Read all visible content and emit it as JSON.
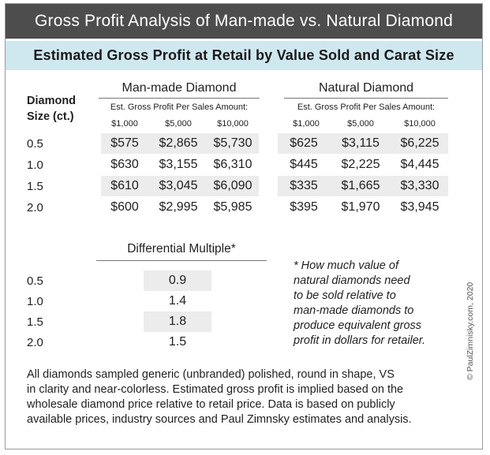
{
  "title": "Gross Profit Analysis of Man-made vs. Natural Diamond",
  "subtitle": "Estimated Gross Profit at Retail by Value Sold and Carat Size",
  "size_header_line1": "Diamond",
  "size_header_line2": "Size (ct.)",
  "groups": [
    {
      "name": "Man-made Diamond",
      "note": "Est. Gross Profit Per Sales Amount:",
      "amounts": [
        "$1,000",
        "$5,000",
        "$10,000"
      ],
      "rows": [
        [
          "$575",
          "$2,865",
          "$5,730"
        ],
        [
          "$630",
          "$3,155",
          "$6,310"
        ],
        [
          "$610",
          "$3,045",
          "$6,090"
        ],
        [
          "$600",
          "$2,995",
          "$5,985"
        ]
      ]
    },
    {
      "name": "Natural Diamond",
      "note": "Est. Gross Profit Per Sales Amount:",
      "amounts": [
        "$1,000",
        "$5,000",
        "$10,000"
      ],
      "rows": [
        [
          "$625",
          "$3,115",
          "$6,225"
        ],
        [
          "$445",
          "$2,225",
          "$4,445"
        ],
        [
          "$335",
          "$1,665",
          "$3,330"
        ],
        [
          "$395",
          "$1,970",
          "$3,945"
        ]
      ]
    }
  ],
  "sizes": [
    "0.5",
    "1.0",
    "1.5",
    "2.0"
  ],
  "multiple": {
    "title": "Differential Multiple*",
    "sizes": [
      "0.5",
      "1.0",
      "1.5",
      "2.0"
    ],
    "values": [
      "0.9",
      "1.4",
      "1.8",
      "1.5"
    ]
  },
  "footnote_lines": [
    "* How much value of",
    "natural diamonds need",
    "to be sold relative to",
    "man-made diamonds to",
    "produce equivalent gross",
    "profit in dollars for retailer."
  ],
  "footer_lines": [
    "All diamonds sampled generic (unbranded) polished, round in shape, VS",
    "in clarity and near-colorless. Estimated gross profit is implied based on the",
    "wholesale diamond price relative to retail price. Data is based on publicly",
    "available prices, industry sources and Paul Zimnsky estimates and analysis."
  ],
  "copyright": "© PaulZimnisky.com, 2020"
}
